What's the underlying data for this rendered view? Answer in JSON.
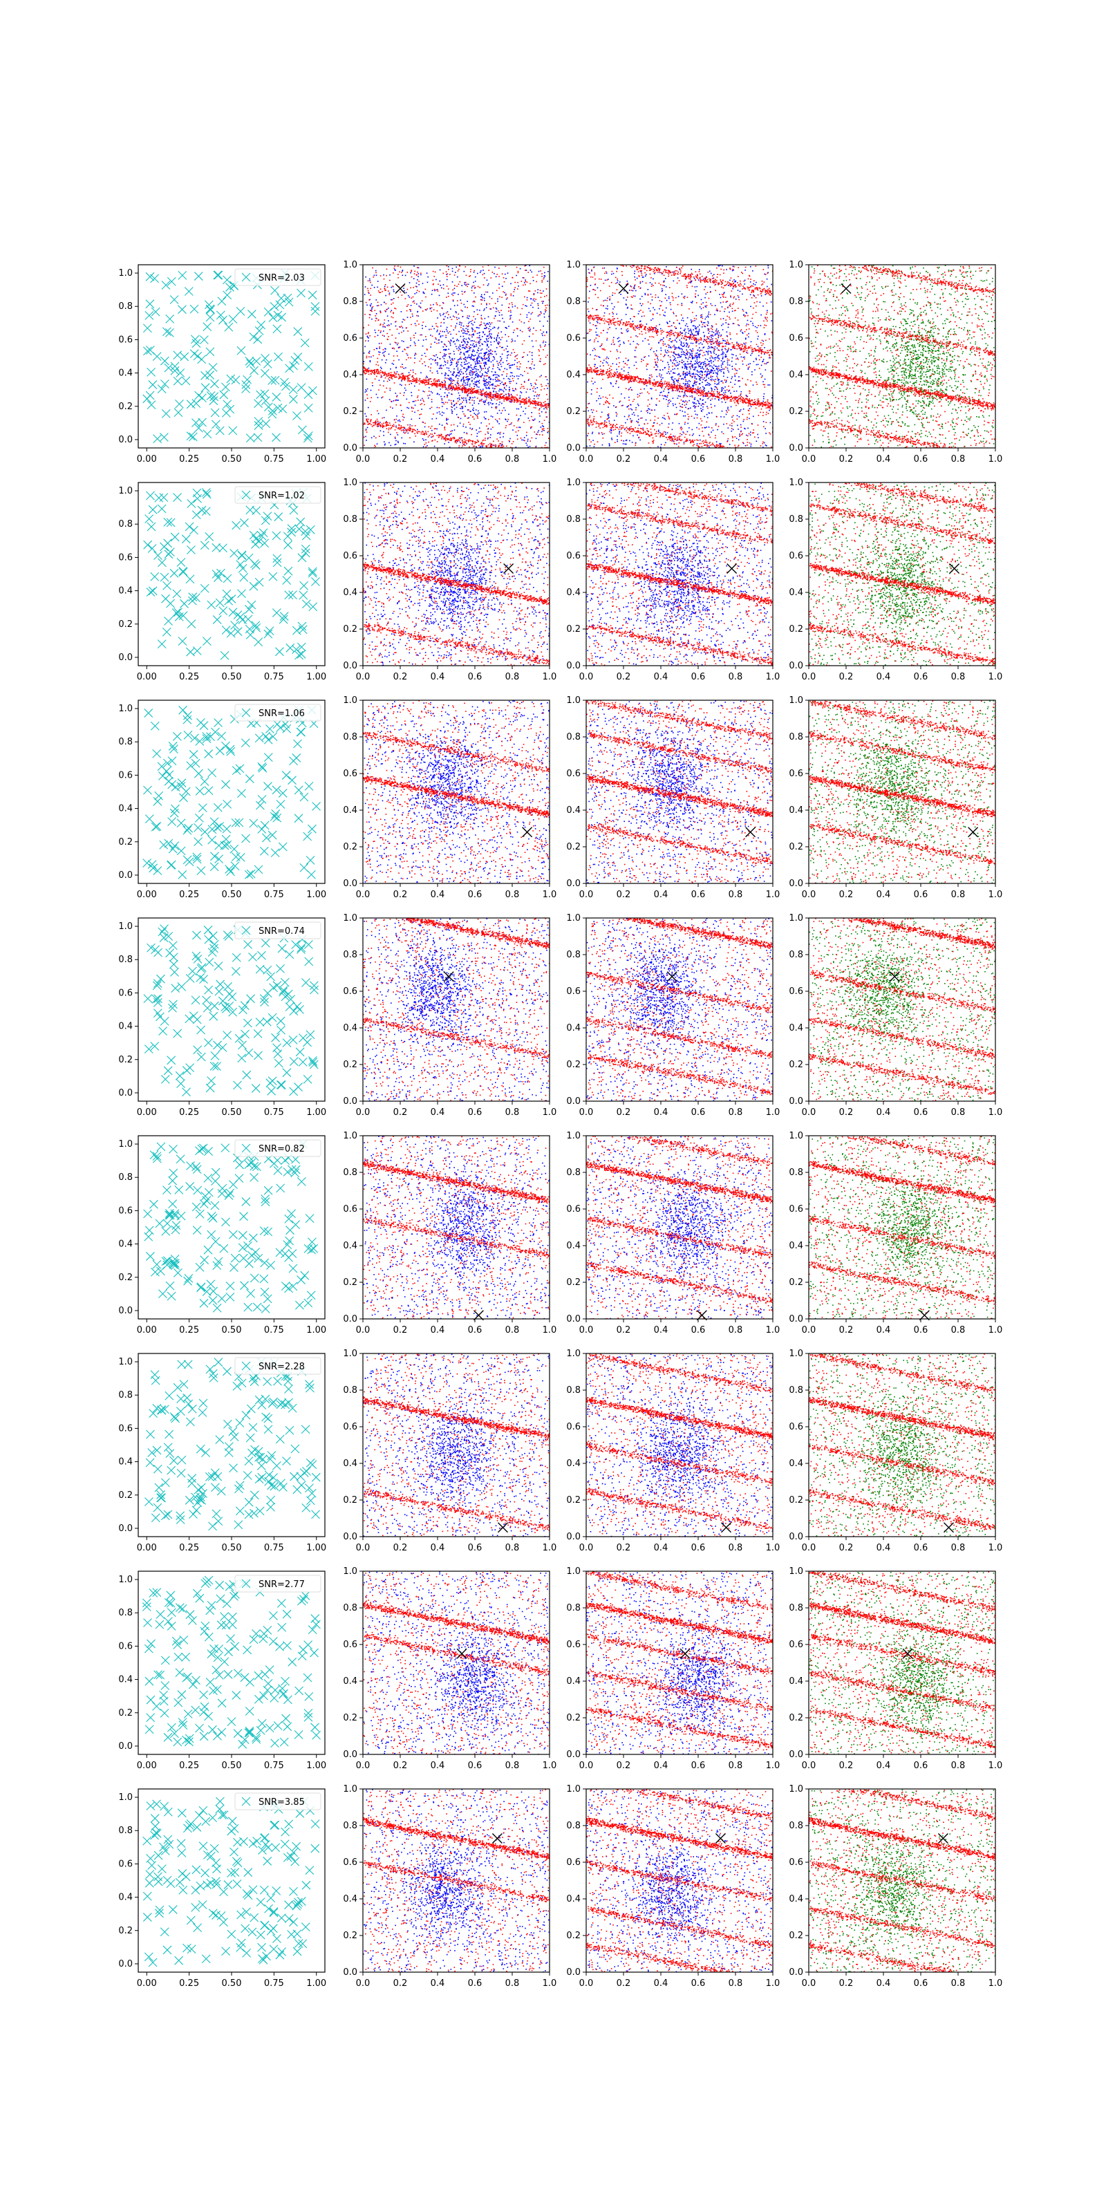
{
  "figure": {
    "rows": 8,
    "cols": 4,
    "marker_color": "#17bfbf",
    "red": "#ff0000",
    "blue": "#0000ff",
    "green": "#008000",
    "cross_color": "#000000"
  },
  "chart_data": [
    {
      "row": 1,
      "type": "scatter",
      "legend": "SNR=2.03",
      "legend_loc": "upper right",
      "xlim": [
        0,
        1
      ],
      "ylim": [
        0,
        1
      ],
      "left_xticks": [
        "0.00",
        "0.25",
        "0.50",
        "0.75",
        "1.00"
      ],
      "left_yticks": [
        "0.0",
        "0.2",
        "0.4",
        "0.6",
        "0.8",
        "1.0"
      ],
      "xticks": [
        "0.0",
        "0.2",
        "0.4",
        "0.6",
        "0.8",
        "1.0"
      ],
      "yticks": [
        "0.0",
        "0.2",
        "0.4",
        "0.6",
        "0.8",
        "1.0"
      ],
      "cross": [
        0.2,
        0.87
      ],
      "red_band_slope": -0.2,
      "red_bands": [
        0.33,
        0.05,
        0.95,
        0.62
      ],
      "blue_center": [
        0.6,
        0.45
      ]
    },
    {
      "row": 2,
      "type": "scatter",
      "legend": "SNR=1.02",
      "legend_loc": "upper right",
      "xlim": [
        0,
        1
      ],
      "ylim": [
        0,
        1
      ],
      "left_xticks": [
        "0.00",
        "0.25",
        "0.50",
        "0.75",
        "1.00"
      ],
      "left_yticks": [
        "0.0",
        "0.2",
        "0.4",
        "0.6",
        "0.8",
        "1.0"
      ],
      "xticks": [
        "0.0",
        "0.2",
        "0.4",
        "0.6",
        "0.8",
        "1.0"
      ],
      "yticks": [
        "0.0",
        "0.2",
        "0.4",
        "0.6",
        "0.8",
        "1.0"
      ],
      "cross": [
        0.78,
        0.53
      ],
      "red_band_slope": -0.2,
      "red_bands": [
        0.45,
        0.12,
        0.78,
        0.95
      ],
      "blue_center": [
        0.5,
        0.45
      ]
    },
    {
      "row": 3,
      "type": "scatter",
      "legend": "SNR=1.06",
      "legend_loc": "upper right",
      "xlim": [
        0,
        1
      ],
      "ylim": [
        0,
        1
      ],
      "left_xticks": [
        "0.00",
        "0.25",
        "0.50",
        "0.75",
        "1.00"
      ],
      "left_yticks": [
        "0.0",
        "0.2",
        "0.4",
        "0.6",
        "0.8",
        "1.0"
      ],
      "xticks": [
        "0.0",
        "0.2",
        "0.4",
        "0.6",
        "0.8",
        "1.0"
      ],
      "yticks": [
        "0.0",
        "0.2",
        "0.4",
        "0.6",
        "0.8",
        "1.0"
      ],
      "cross": [
        0.88,
        0.28
      ],
      "red_band_slope": -0.2,
      "red_bands": [
        0.48,
        0.72,
        0.22,
        0.9
      ],
      "blue_center": [
        0.45,
        0.55
      ]
    },
    {
      "row": 4,
      "type": "scatter",
      "legend": "SNR=0.74",
      "legend_loc": "upper right",
      "xlim": [
        0,
        1
      ],
      "ylim": [
        0,
        1
      ],
      "left_xticks": [
        "0.00",
        "0.25",
        "0.50",
        "0.75",
        "1.00"
      ],
      "left_yticks": [
        "0.0",
        "0.2",
        "0.4",
        "0.6",
        "0.8",
        "1.0"
      ],
      "xticks": [
        "0.0",
        "0.2",
        "0.4",
        "0.6",
        "0.8",
        "1.0"
      ],
      "yticks": [
        "0.0",
        "0.2",
        "0.4",
        "0.6",
        "0.8",
        "1.0"
      ],
      "cross": [
        0.46,
        0.68
      ],
      "red_band_slope": -0.2,
      "red_bands": [
        0.95,
        0.35,
        0.6,
        0.15
      ],
      "blue_center": [
        0.4,
        0.6
      ]
    },
    {
      "row": 5,
      "type": "scatter",
      "legend": "SNR=0.82",
      "legend_loc": "upper right",
      "xlim": [
        0,
        1
      ],
      "ylim": [
        0,
        1
      ],
      "left_xticks": [
        "0.00",
        "0.25",
        "0.50",
        "0.75",
        "1.00"
      ],
      "left_yticks": [
        "0.0",
        "0.2",
        "0.4",
        "0.6",
        "0.8",
        "1.0"
      ],
      "xticks": [
        "0.0",
        "0.2",
        "0.4",
        "0.6",
        "0.8",
        "1.0"
      ],
      "yticks": [
        "0.0",
        "0.2",
        "0.4",
        "0.6",
        "0.8",
        "1.0"
      ],
      "cross": [
        0.62,
        0.02
      ],
      "red_band_slope": -0.2,
      "red_bands": [
        0.75,
        0.45,
        0.2,
        0.95
      ],
      "blue_center": [
        0.55,
        0.5
      ]
    },
    {
      "row": 6,
      "type": "scatter",
      "legend": "SNR=2.28",
      "legend_loc": "upper right",
      "xlim": [
        0,
        1
      ],
      "ylim": [
        0,
        1
      ],
      "left_xticks": [
        "0.00",
        "0.25",
        "0.50",
        "0.75",
        "1.00"
      ],
      "left_yticks": [
        "0.0",
        "0.2",
        "0.4",
        "0.6",
        "0.8",
        "1.0"
      ],
      "xticks": [
        "0.0",
        "0.2",
        "0.4",
        "0.6",
        "0.8",
        "1.0"
      ],
      "yticks": [
        "0.0",
        "0.2",
        "0.4",
        "0.6",
        "0.8",
        "1.0"
      ],
      "cross": [
        0.75,
        0.05
      ],
      "red_band_slope": -0.2,
      "red_bands": [
        0.65,
        0.15,
        0.4,
        0.9
      ],
      "blue_center": [
        0.5,
        0.45
      ]
    },
    {
      "row": 7,
      "type": "scatter",
      "legend": "SNR=2.77",
      "legend_loc": "upper right",
      "xlim": [
        0,
        1
      ],
      "ylim": [
        0,
        1
      ],
      "left_xticks": [
        "0.00",
        "0.25",
        "0.50",
        "0.75",
        "1.00"
      ],
      "left_yticks": [
        "0.0",
        "0.2",
        "0.4",
        "0.6",
        "0.8",
        "1.0"
      ],
      "xticks": [
        "0.0",
        "0.2",
        "0.4",
        "0.6",
        "0.8",
        "1.0"
      ],
      "yticks": [
        "0.0",
        "0.2",
        "0.4",
        "0.6",
        "0.8",
        "1.0"
      ],
      "cross": [
        0.53,
        0.55
      ],
      "red_band_slope": -0.2,
      "red_bands": [
        0.72,
        0.55,
        0.15,
        0.35,
        0.9
      ],
      "blue_center": [
        0.6,
        0.4
      ]
    },
    {
      "row": 8,
      "type": "scatter",
      "legend": "SNR=3.85",
      "legend_loc": "upper right",
      "xlim": [
        0,
        1
      ],
      "ylim": [
        0,
        1
      ],
      "left_xticks": [
        "0.00",
        "0.25",
        "0.50",
        "0.75",
        "1.00"
      ],
      "left_yticks": [
        "0.0",
        "0.2",
        "0.4",
        "0.6",
        "0.8",
        "1.0"
      ],
      "xticks": [
        "0.0",
        "0.2",
        "0.4",
        "0.6",
        "0.8",
        "1.0"
      ],
      "yticks": [
        "0.0",
        "0.2",
        "0.4",
        "0.6",
        "0.8",
        "1.0"
      ],
      "cross": [
        0.72,
        0.73
      ],
      "red_band_slope": -0.2,
      "red_bands": [
        0.73,
        0.5,
        0.25,
        0.05,
        0.95
      ],
      "blue_center": [
        0.45,
        0.45
      ]
    }
  ]
}
